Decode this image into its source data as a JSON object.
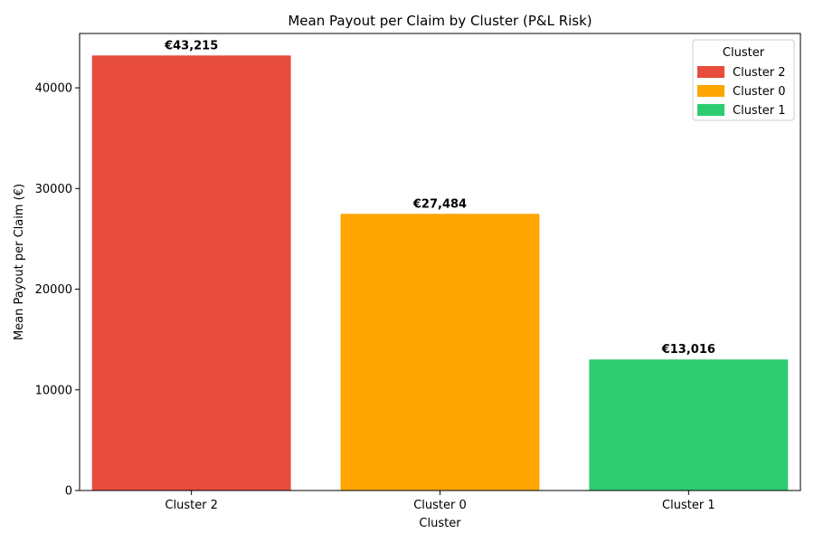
{
  "chart_data": {
    "type": "bar",
    "title": "Mean Payout per Claim by Cluster (P&L Risk)",
    "xlabel": "Cluster",
    "ylabel": "Mean Payout per Claim (€)",
    "categories": [
      "Cluster 2",
      "Cluster 0",
      "Cluster 1"
    ],
    "values": [
      43215,
      27484,
      13016
    ],
    "data_labels": [
      "€43,215",
      "€27,484",
      "€13,016"
    ],
    "colors": [
      "#e74c3c",
      "#ffa500",
      "#2ecc71"
    ],
    "ylim": [
      0,
      45400
    ],
    "yticks": [
      0,
      10000,
      20000,
      30000,
      40000
    ],
    "ytick_labels": [
      "0",
      "10000",
      "20000",
      "30000",
      "40000"
    ],
    "grid": false,
    "legend": {
      "title": "Cluster",
      "placement": "top-right",
      "entries": [
        "Cluster 2",
        "Cluster 0",
        "Cluster 1"
      ]
    }
  }
}
